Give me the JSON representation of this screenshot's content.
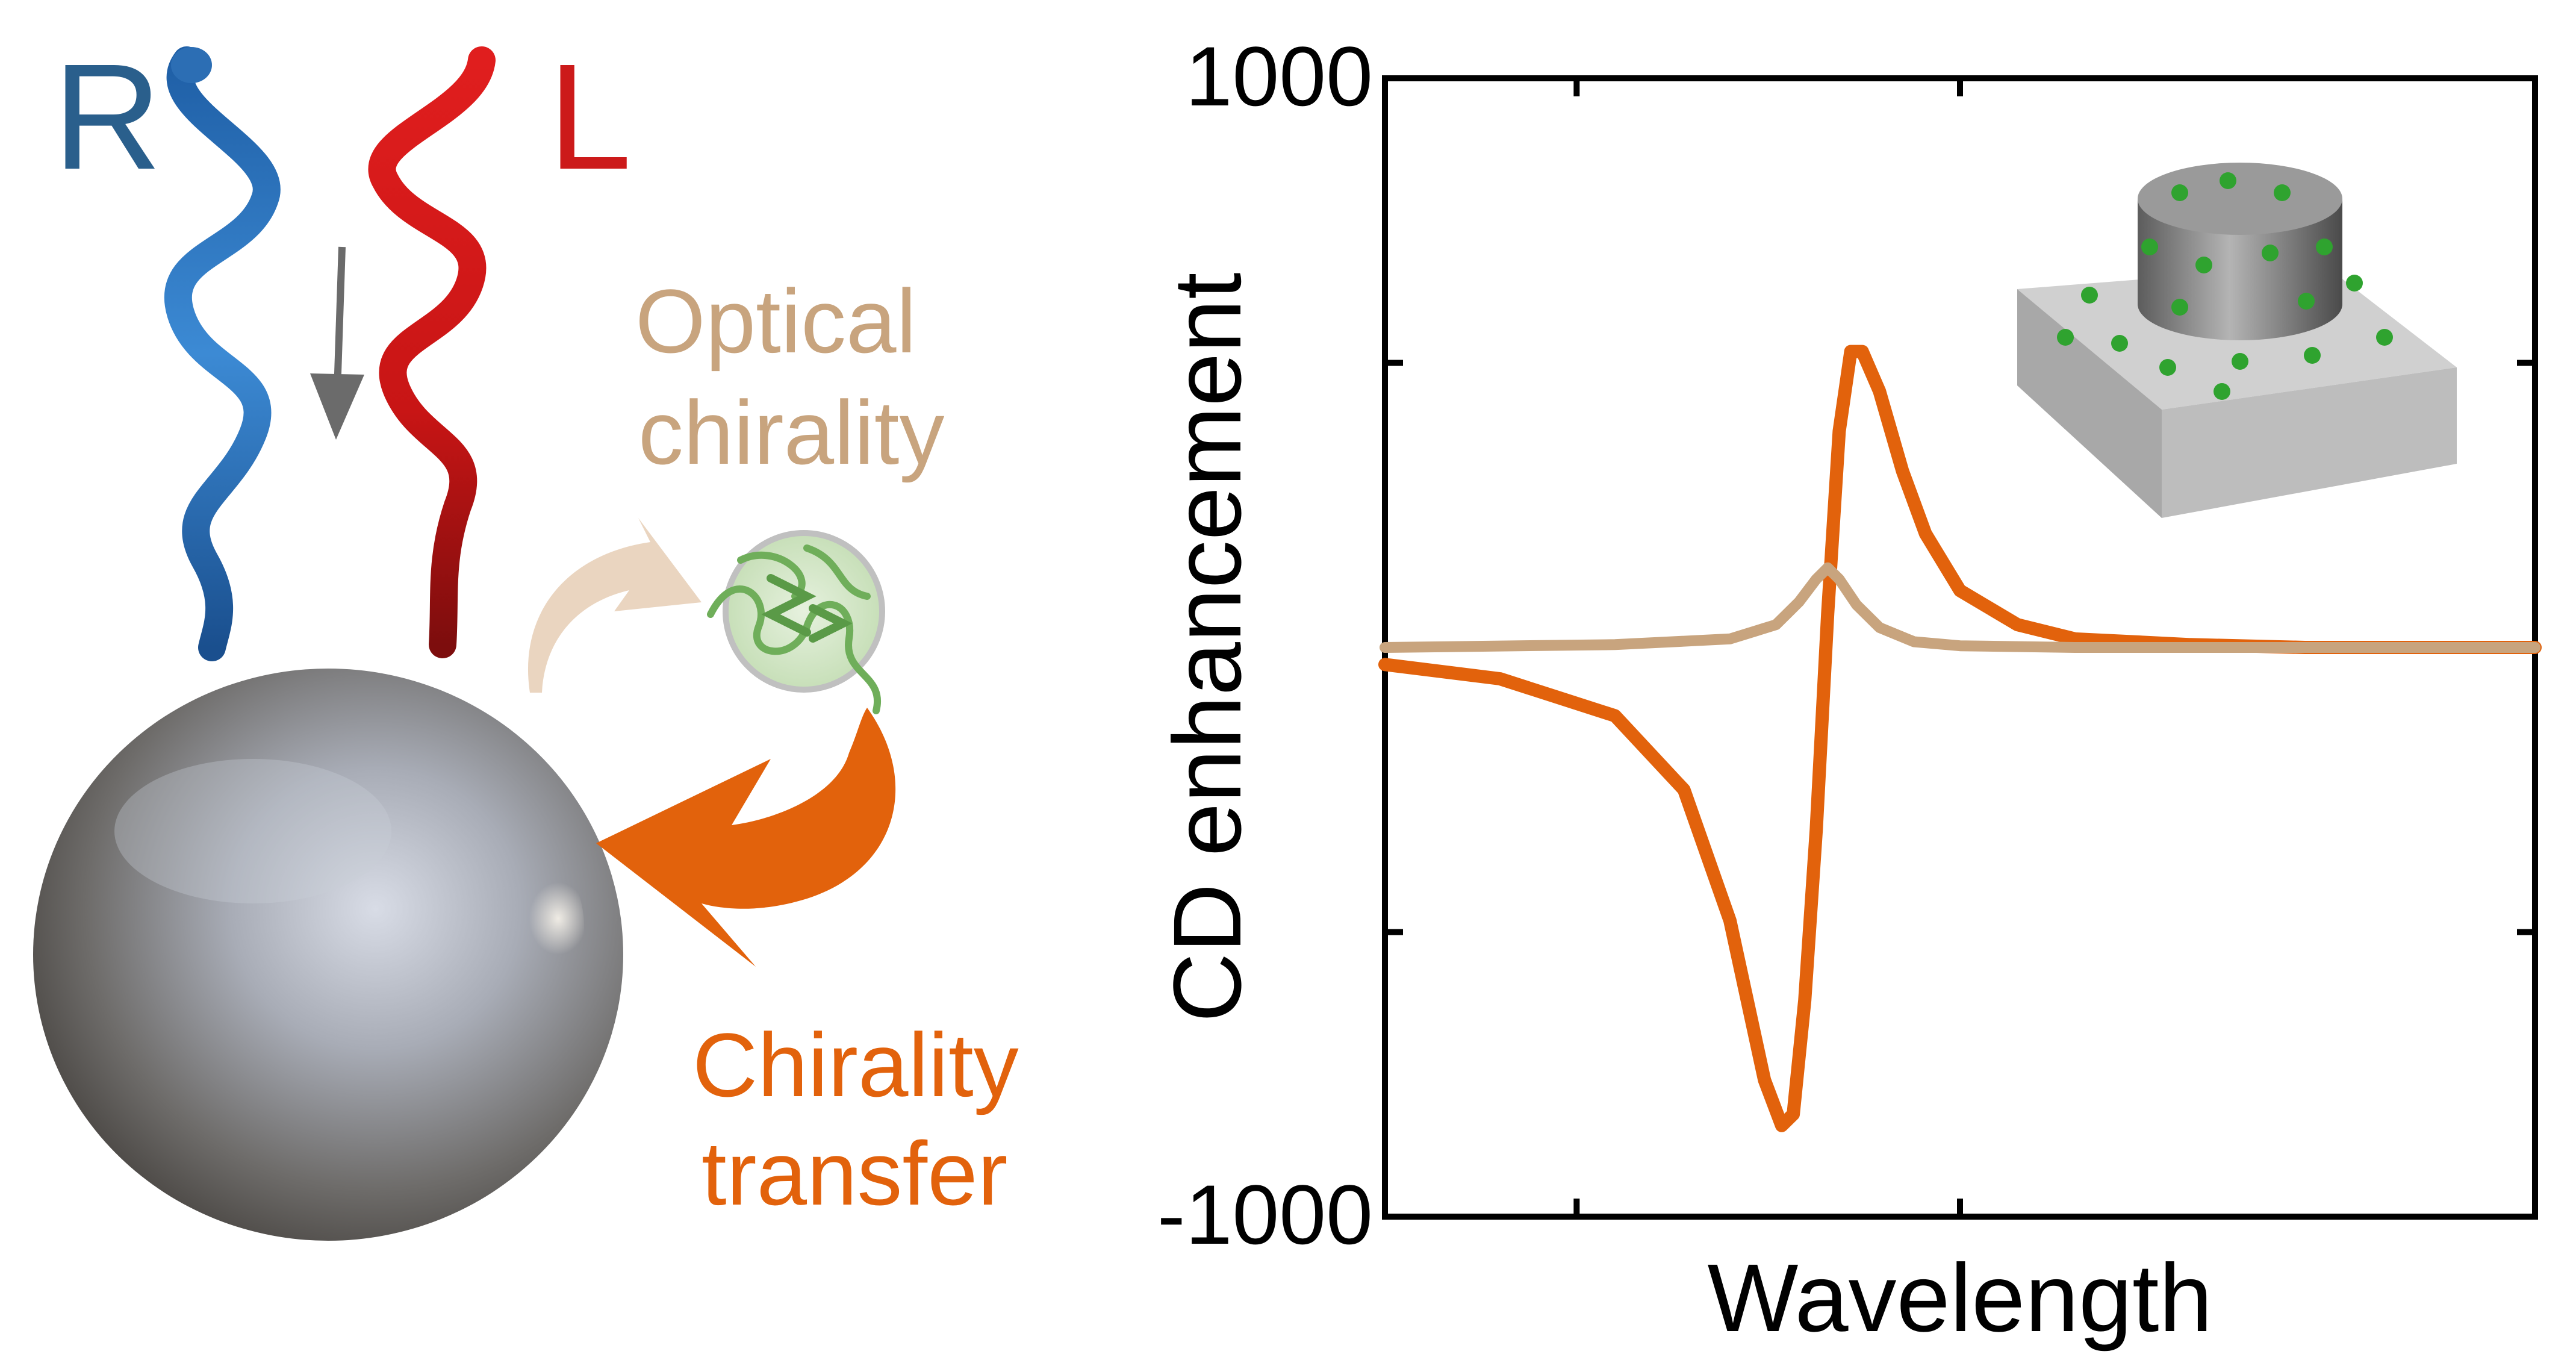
{
  "illustration": {
    "right_label": "R",
    "left_label": "L",
    "optical_line1": "Optical",
    "optical_line2": "chirality",
    "transfer_line1": "Chirality",
    "transfer_line2": "transfer",
    "colors": {
      "right_helix": "#2d6fb0",
      "left_helix": "#cc1a1a",
      "optical": "#c8a47e",
      "transfer": "#e2620c",
      "molecule": "#6fae5a"
    },
    "icons": [
      "helix-right-icon",
      "helix-left-icon",
      "down-arrow-icon",
      "sphere-icon",
      "molecule-icon",
      "curved-arrow-icon",
      "nanodisk-icon"
    ]
  },
  "chart_data": {
    "type": "line",
    "xlabel": "Wavelength",
    "ylabel": "CD enhancement",
    "ylim": [
      -1000,
      1000
    ],
    "y_tick_labels": [
      "1000",
      "-1000"
    ],
    "grid": false,
    "legend": "none",
    "xlim": [
      0,
      1
    ],
    "series": [
      {
        "color": "#e2620c",
        "x": [
          0.0,
          0.1,
          0.2,
          0.26,
          0.3,
          0.33,
          0.345,
          0.355,
          0.365,
          0.375,
          0.385,
          0.395,
          0.405,
          0.415,
          0.43,
          0.45,
          0.47,
          0.5,
          0.55,
          0.6,
          0.7,
          0.8,
          0.9,
          1.0
        ],
        "y": [
          -30,
          -55,
          -120,
          -250,
          -480,
          -760,
          -840,
          -820,
          -620,
          -320,
          60,
          380,
          520,
          520,
          450,
          310,
          200,
          100,
          40,
          15,
          5,
          0,
          0,
          0
        ]
      },
      {
        "color": "#c8a47e",
        "x": [
          0.0,
          0.2,
          0.3,
          0.34,
          0.36,
          0.375,
          0.385,
          0.395,
          0.41,
          0.43,
          0.46,
          0.5,
          0.6,
          0.8,
          1.0
        ],
        "y": [
          0,
          5,
          15,
          40,
          80,
          120,
          140,
          120,
          75,
          35,
          10,
          3,
          0,
          0,
          0
        ]
      }
    ]
  }
}
